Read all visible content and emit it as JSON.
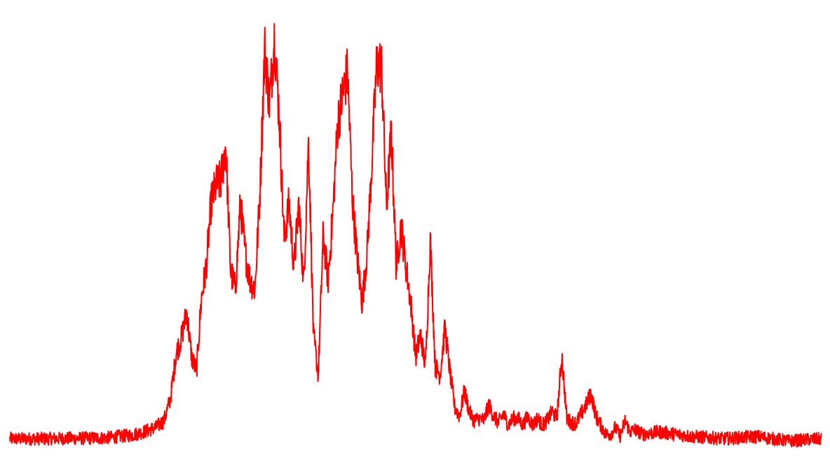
{
  "chart_data": {
    "type": "line",
    "title": "",
    "xlabel": "",
    "ylabel": "",
    "grid": false,
    "axes_visible": false,
    "legend": "none",
    "xlim": [
      0,
      1
    ],
    "ylim": [
      0,
      1
    ],
    "series": [
      {
        "color": "#ff0000",
        "noisy": true,
        "x": [
          0.0,
          0.04,
          0.08,
          0.12,
          0.15,
          0.165,
          0.18,
          0.19,
          0.198,
          0.205,
          0.211,
          0.218,
          0.224,
          0.23,
          0.236,
          0.242,
          0.248,
          0.254,
          0.26,
          0.266,
          0.272,
          0.278,
          0.284,
          0.29,
          0.296,
          0.302,
          0.308,
          0.314,
          0.32,
          0.326,
          0.332,
          0.338,
          0.344,
          0.35,
          0.356,
          0.362,
          0.368,
          0.374,
          0.38,
          0.386,
          0.392,
          0.398,
          0.404,
          0.41,
          0.416,
          0.422,
          0.428,
          0.434,
          0.44,
          0.446,
          0.452,
          0.458,
          0.464,
          0.47,
          0.476,
          0.482,
          0.488,
          0.494,
          0.5,
          0.506,
          0.512,
          0.518,
          0.524,
          0.53,
          0.536,
          0.542,
          0.548,
          0.554,
          0.56,
          0.566,
          0.572,
          0.578,
          0.584,
          0.59,
          0.596,
          0.602,
          0.608,
          0.614,
          0.62,
          0.626,
          0.632,
          0.638,
          0.644,
          0.65,
          0.656,
          0.662,
          0.668,
          0.674,
          0.68,
          0.686,
          0.692,
          0.698,
          0.704,
          0.71,
          0.716,
          0.722,
          0.728,
          0.734,
          0.74,
          0.746,
          0.752,
          0.758,
          0.764,
          0.77,
          0.78,
          0.8,
          0.84,
          0.88,
          0.92,
          0.96,
          1.0
        ],
        "y": [
          0.04,
          0.04,
          0.041,
          0.042,
          0.048,
          0.055,
          0.065,
          0.08,
          0.13,
          0.23,
          0.26,
          0.32,
          0.22,
          0.19,
          0.35,
          0.42,
          0.56,
          0.6,
          0.61,
          0.69,
          0.41,
          0.37,
          0.56,
          0.45,
          0.39,
          0.37,
          0.58,
          0.9,
          0.78,
          0.93,
          0.75,
          0.48,
          0.56,
          0.42,
          0.56,
          0.38,
          0.7,
          0.27,
          0.18,
          0.49,
          0.39,
          0.54,
          0.74,
          0.8,
          0.85,
          0.57,
          0.44,
          0.34,
          0.45,
          0.65,
          0.87,
          0.86,
          0.55,
          0.72,
          0.42,
          0.51,
          0.42,
          0.34,
          0.22,
          0.27,
          0.2,
          0.48,
          0.2,
          0.18,
          0.285,
          0.19,
          0.11,
          0.09,
          0.145,
          0.1,
          0.08,
          0.085,
          0.08,
          0.115,
          0.09,
          0.075,
          0.095,
          0.07,
          0.085,
          0.085,
          0.07,
          0.09,
          0.07,
          0.085,
          0.07,
          0.08,
          0.1,
          0.085,
          0.225,
          0.085,
          0.075,
          0.075,
          0.095,
          0.115,
          0.14,
          0.09,
          0.07,
          0.05,
          0.05,
          0.065,
          0.045,
          0.08,
          0.055,
          0.06,
          0.05,
          0.055,
          0.045,
          0.04,
          0.045,
          0.035,
          0.04
        ]
      }
    ]
  }
}
